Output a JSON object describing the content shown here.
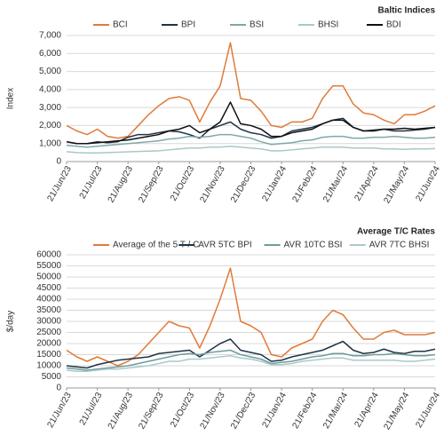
{
  "chart_data": [
    {
      "type": "line",
      "title": "Baltic Indices",
      "y_label": "Index",
      "legend": "top",
      "categories": [
        "21/Jun/23",
        null,
        null,
        "21/Jul/23",
        null,
        null,
        "21/Aug/23",
        null,
        null,
        "21/Sep/23",
        null,
        null,
        "21/Oct/23",
        null,
        null,
        "21/Nov/23",
        null,
        null,
        "21/Dec/23",
        null,
        null,
        "21/Jan/24",
        null,
        null,
        "21/Feb/24",
        null,
        null,
        "21/Mar/24",
        null,
        null,
        "21/Apr/24",
        null,
        null,
        "21/May/24",
        null,
        null,
        "21/Jun/24"
      ],
      "ylim": [
        0,
        7000
      ],
      "yticks": [
        0,
        {
          "value": 1000,
          "label": "1,000"
        },
        {
          "value": 2000,
          "label": "2,000"
        },
        {
          "value": 3000,
          "label": "3,000"
        },
        {
          "value": 4000,
          "label": "4,000"
        },
        {
          "value": 5000,
          "label": "5,000"
        },
        {
          "value": 6000,
          "label": "6,000"
        },
        {
          "value": 7000,
          "label": "7,000"
        }
      ],
      "grid": true,
      "series": [
        {
          "name": "BCI",
          "color": "#e07b39",
          "values": [
            2000,
            1700,
            1500,
            1800,
            1400,
            1300,
            1400,
            2000,
            2600,
            3100,
            3500,
            3600,
            3400,
            2200,
            3300,
            4200,
            6600,
            3500,
            3400,
            2800,
            2000,
            1900,
            2200,
            2200,
            2400,
            3500,
            4200,
            4200,
            3200,
            2700,
            2600,
            2300,
            2100,
            2600,
            2600,
            2800,
            3100
          ]
        },
        {
          "name": "BPI",
          "color": "#1f3347",
          "values": [
            1100,
            1000,
            1000,
            1100,
            1050,
            1100,
            1350,
            1500,
            1500,
            1600,
            1700,
            1650,
            1500,
            1300,
            1800,
            2000,
            2200,
            1800,
            1600,
            1500,
            1300,
            1400,
            1700,
            1800,
            1900,
            2100,
            2300,
            2400,
            1900,
            1700,
            1750,
            1800,
            1700,
            1700,
            1750,
            1800,
            1900
          ]
        },
        {
          "name": "BSI",
          "color": "#7fa8a8",
          "values": [
            900,
            850,
            800,
            850,
            900,
            950,
            1000,
            1050,
            1100,
            1150,
            1250,
            1300,
            1400,
            1350,
            1400,
            1500,
            1500,
            1400,
            1300,
            1100,
            950,
            1000,
            1050,
            1150,
            1200,
            1350,
            1400,
            1400,
            1300,
            1300,
            1350,
            1350,
            1400,
            1350,
            1300,
            1300,
            1350
          ]
        },
        {
          "name": "BHSI",
          "color": "#a8c8c8",
          "values": [
            550,
            500,
            480,
            480,
            500,
            520,
            540,
            560,
            580,
            600,
            650,
            700,
            750,
            750,
            800,
            800,
            850,
            800,
            750,
            700,
            600,
            600,
            650,
            700,
            750,
            800,
            800,
            800,
            750,
            750,
            750,
            700,
            700,
            680,
            700,
            700,
            720
          ]
        },
        {
          "name": "BDI",
          "color": "#111111",
          "values": [
            1100,
            1000,
            1000,
            1050,
            1100,
            1150,
            1200,
            1300,
            1400,
            1500,
            1700,
            1800,
            2000,
            1600,
            1800,
            2200,
            3300,
            2100,
            2000,
            1800,
            1400,
            1400,
            1600,
            1700,
            1800,
            2100,
            2300,
            2300,
            1900,
            1700,
            1700,
            1800,
            1800,
            1850,
            1800,
            1850,
            1900
          ]
        }
      ]
    },
    {
      "type": "line",
      "title": "Average T/C Rates",
      "y_label": "$/day",
      "legend": "top",
      "categories": [
        "21/Jun/23",
        null,
        null,
        "21/Jul/23",
        null,
        null,
        "21/Aug/23",
        null,
        null,
        "21/Sep/23",
        null,
        null,
        "21/Oct/23",
        null,
        null,
        "21/Nov/23",
        null,
        null,
        "21/Dec/23",
        null,
        null,
        "21/Jan/24",
        null,
        null,
        "21/Feb/24",
        null,
        null,
        "21/Mar/24",
        null,
        null,
        "21/Apr/24",
        null,
        null,
        "21/May/24",
        null,
        null,
        "21/Jun/24"
      ],
      "ylim": [
        0,
        60000
      ],
      "yticks": [
        0,
        5000,
        10000,
        15000,
        20000,
        25000,
        30000,
        35000,
        40000,
        45000,
        50000,
        55000,
        60000
      ],
      "grid": true,
      "series": [
        {
          "name": "Average of the 5 T / C",
          "color": "#e07b39",
          "values": [
            17000,
            14000,
            12000,
            14000,
            12000,
            10000,
            12000,
            15000,
            20000,
            25000,
            30000,
            28000,
            27000,
            18000,
            28000,
            40000,
            54000,
            30000,
            28000,
            25000,
            15000,
            14000,
            18000,
            20000,
            22000,
            30000,
            35000,
            33000,
            27000,
            22000,
            22000,
            25000,
            26000,
            24000,
            24000,
            24000,
            25000
          ]
        },
        {
          "name": "AVR 5TC BPI",
          "color": "#1f3347",
          "values": [
            10000,
            9500,
            9000,
            10500,
            11500,
            12500,
            13000,
            13500,
            14000,
            15500,
            16000,
            16500,
            17000,
            14000,
            17000,
            20000,
            22000,
            17000,
            16000,
            15000,
            12000,
            12500,
            14000,
            15000,
            16000,
            17000,
            19000,
            21000,
            17000,
            15500,
            16000,
            17500,
            16000,
            15500,
            16500,
            16500,
            17500
          ]
        },
        {
          "name": "AVR 10TC BSI",
          "color": "#6e9c9a",
          "values": [
            9000,
            8500,
            8000,
            8500,
            9000,
            9500,
            10000,
            11000,
            12000,
            13000,
            14000,
            15000,
            15500,
            15000,
            16000,
            16500,
            17000,
            15000,
            14000,
            13000,
            11000,
            11500,
            12000,
            13000,
            14000,
            14500,
            15500,
            15500,
            14500,
            14500,
            15000,
            15000,
            15500,
            15000,
            14500,
            14500,
            15000
          ]
        },
        {
          "name": "AVR 7TC BHSI",
          "color": "#a9c9cc",
          "values": [
            8000,
            7500,
            7500,
            8000,
            8500,
            8500,
            9000,
            9500,
            10000,
            11000,
            12000,
            12000,
            13000,
            13000,
            13500,
            14000,
            14500,
            13500,
            13000,
            12000,
            10500,
            10500,
            11000,
            12000,
            12500,
            13000,
            13500,
            13500,
            12500,
            12500,
            12500,
            12500,
            12500,
            12000,
            12000,
            12500,
            13000
          ]
        }
      ]
    }
  ]
}
